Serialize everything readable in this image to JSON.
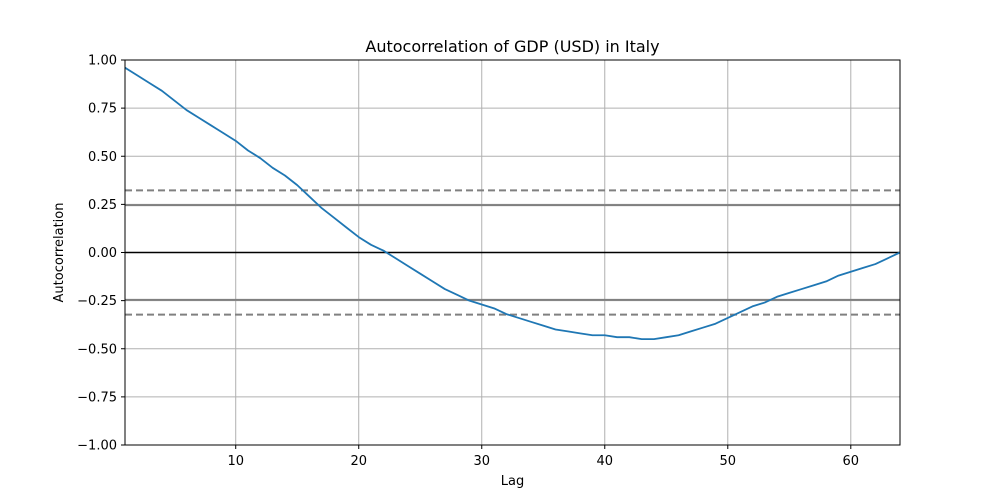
{
  "chart_data": {
    "type": "line",
    "title": "Autocorrelation of GDP (USD) in Italy",
    "xlabel": "Lag",
    "ylabel": "Autocorrelation",
    "xlim": [
      1,
      64
    ],
    "ylim": [
      -1.0,
      1.0
    ],
    "xticks": [
      10,
      20,
      30,
      40,
      50,
      60
    ],
    "yticks": [
      -1.0,
      -0.75,
      -0.5,
      -0.25,
      0.0,
      0.25,
      0.5,
      0.75,
      1.0
    ],
    "ytick_labels": [
      "−1.00",
      "−0.75",
      "−0.50",
      "−0.25",
      "0.00",
      "0.25",
      "0.50",
      "0.75",
      "1.00"
    ],
    "grid": true,
    "series": [
      {
        "color": "#1f77b4",
        "x": [
          1,
          2,
          3,
          4,
          5,
          6,
          7,
          8,
          9,
          10,
          11,
          12,
          13,
          14,
          15,
          16,
          17,
          18,
          19,
          20,
          21,
          22,
          23,
          24,
          25,
          26,
          27,
          28,
          29,
          30,
          31,
          32,
          33,
          34,
          35,
          36,
          37,
          38,
          39,
          40,
          41,
          42,
          43,
          44,
          45,
          46,
          47,
          48,
          49,
          50,
          51,
          52,
          53,
          54,
          55,
          56,
          57,
          58,
          59,
          60,
          61,
          62,
          63,
          64
        ],
        "y": [
          0.96,
          0.92,
          0.88,
          0.84,
          0.79,
          0.74,
          0.7,
          0.66,
          0.62,
          0.58,
          0.53,
          0.49,
          0.44,
          0.4,
          0.35,
          0.29,
          0.23,
          0.18,
          0.13,
          0.08,
          0.04,
          0.01,
          -0.03,
          -0.07,
          -0.11,
          -0.15,
          -0.19,
          -0.22,
          -0.25,
          -0.27,
          -0.29,
          -0.32,
          -0.34,
          -0.36,
          -0.38,
          -0.4,
          -0.41,
          -0.42,
          -0.43,
          -0.43,
          -0.44,
          -0.44,
          -0.45,
          -0.45,
          -0.44,
          -0.43,
          -0.41,
          -0.39,
          -0.37,
          -0.34,
          -0.31,
          -0.28,
          -0.26,
          -0.23,
          -0.21,
          -0.19,
          -0.17,
          -0.15,
          -0.12,
          -0.1,
          -0.08,
          -0.06,
          -0.03,
          0.0
        ]
      }
    ],
    "reference_lines": [
      {
        "y": 0.0,
        "color": "#000000",
        "style": "solid"
      },
      {
        "y": 0.246,
        "color": "#808080",
        "style": "solid"
      },
      {
        "y": -0.246,
        "color": "#808080",
        "style": "solid"
      },
      {
        "y": 0.323,
        "color": "#808080",
        "style": "dashed"
      },
      {
        "y": -0.323,
        "color": "#808080",
        "style": "dashed"
      }
    ]
  }
}
